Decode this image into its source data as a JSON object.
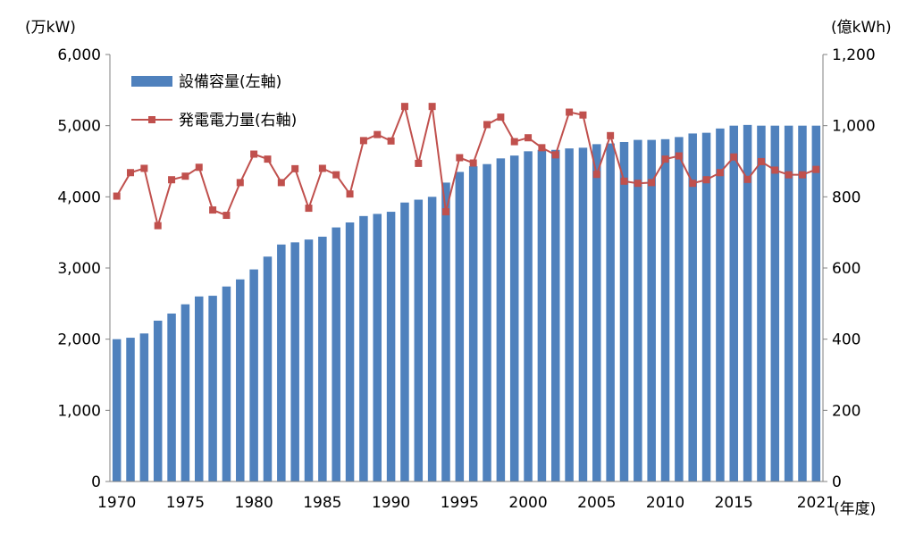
{
  "chart_data": {
    "type": "bar+line",
    "left_axis_unit": "(万kW)",
    "right_axis_unit": "(億kWh)",
    "x_axis_unit": "(年度)",
    "left_ylim": [
      0,
      6000
    ],
    "right_ylim": [
      0,
      1200
    ],
    "left_ticks": [
      "0",
      "1,000",
      "2,000",
      "3,000",
      "4,000",
      "5,000",
      "6,000"
    ],
    "right_ticks": [
      "0",
      "200",
      "400",
      "600",
      "800",
      "1,000",
      "1,200"
    ],
    "x_ticks": [
      "1970",
      "1975",
      "1980",
      "1985",
      "1990",
      "1995",
      "2000",
      "2005",
      "2010",
      "2015",
      "2021"
    ],
    "grid": false,
    "legend_position": "top-left",
    "x": [
      1970,
      1971,
      1972,
      1973,
      1974,
      1975,
      1976,
      1977,
      1978,
      1979,
      1980,
      1981,
      1982,
      1983,
      1984,
      1985,
      1986,
      1987,
      1988,
      1989,
      1990,
      1991,
      1992,
      1993,
      1994,
      1995,
      1996,
      1997,
      1998,
      1999,
      2000,
      2001,
      2002,
      2003,
      2004,
      2005,
      2006,
      2007,
      2008,
      2009,
      2010,
      2011,
      2012,
      2013,
      2014,
      2015,
      2016,
      2017,
      2018,
      2019,
      2020,
      2021
    ],
    "series": [
      {
        "name": "設備容量(左軸)",
        "type": "bar",
        "axis": "left",
        "color": "#4f81bd",
        "values": [
          2000,
          2020,
          2080,
          2260,
          2360,
          2490,
          2600,
          2610,
          2740,
          2840,
          2980,
          3160,
          3330,
          3360,
          3400,
          3440,
          3570,
          3640,
          3730,
          3760,
          3790,
          3920,
          3960,
          4000,
          4200,
          4350,
          4430,
          4460,
          4540,
          4580,
          4640,
          4660,
          4660,
          4680,
          4690,
          4740,
          4750,
          4770,
          4800,
          4800,
          4810,
          4840,
          4890,
          4900,
          4960,
          5000,
          5010,
          5000,
          5000,
          5000,
          5000,
          5000
        ]
      },
      {
        "name": "発電電力量(右軸)",
        "type": "line",
        "axis": "right",
        "color": "#c0504d",
        "values": [
          802,
          868,
          880,
          719,
          848,
          858,
          883,
          763,
          748,
          840,
          920,
          906,
          840,
          879,
          768,
          880,
          862,
          808,
          958,
          975,
          957,
          1054,
          894,
          1054,
          758,
          910,
          895,
          1003,
          1024,
          955,
          966,
          938,
          918,
          1038,
          1030,
          863,
          972,
          844,
          838,
          840,
          906,
          915,
          838,
          848,
          868,
          912,
          849,
          899,
          875,
          862,
          862,
          877
        ]
      }
    ]
  }
}
